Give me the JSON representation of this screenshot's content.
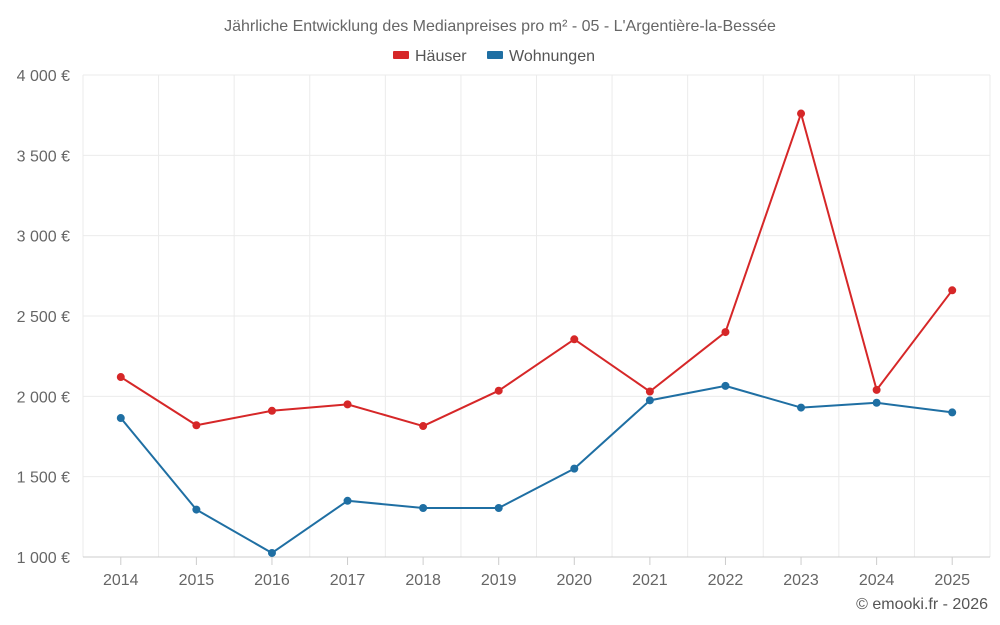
{
  "chart_data": {
    "type": "line",
    "title": "Jährliche Entwicklung des Medianpreises pro m² - 05 - L'Argentière-la-Bessée",
    "categories": [
      "2014",
      "2015",
      "2016",
      "2017",
      "2018",
      "2019",
      "2020",
      "2021",
      "2022",
      "2023",
      "2024",
      "2025"
    ],
    "series": [
      {
        "name": "Häuser",
        "color": "#d62728",
        "values": [
          2120,
          1820,
          1910,
          1950,
          1815,
          2035,
          2355,
          2030,
          2400,
          3760,
          2040,
          2660
        ]
      },
      {
        "name": "Wohnungen",
        "color": "#1f6fa3",
        "values": [
          1865,
          1295,
          1025,
          1350,
          1305,
          1305,
          1550,
          1975,
          2065,
          1930,
          1960,
          1900
        ]
      }
    ],
    "ylim": [
      1000,
      4000
    ],
    "yticks": [
      1000,
      1500,
      2000,
      2500,
      3000,
      3500,
      4000
    ],
    "ytick_labels": [
      "1 000 €",
      "1 500 €",
      "2 000 €",
      "2 500 €",
      "3 000 €",
      "3 500 €",
      "4 000 €"
    ],
    "xlabel": "",
    "ylabel": "",
    "grid": true,
    "legend_position": "top-center"
  },
  "credit": "© emooki.fr - 2026"
}
